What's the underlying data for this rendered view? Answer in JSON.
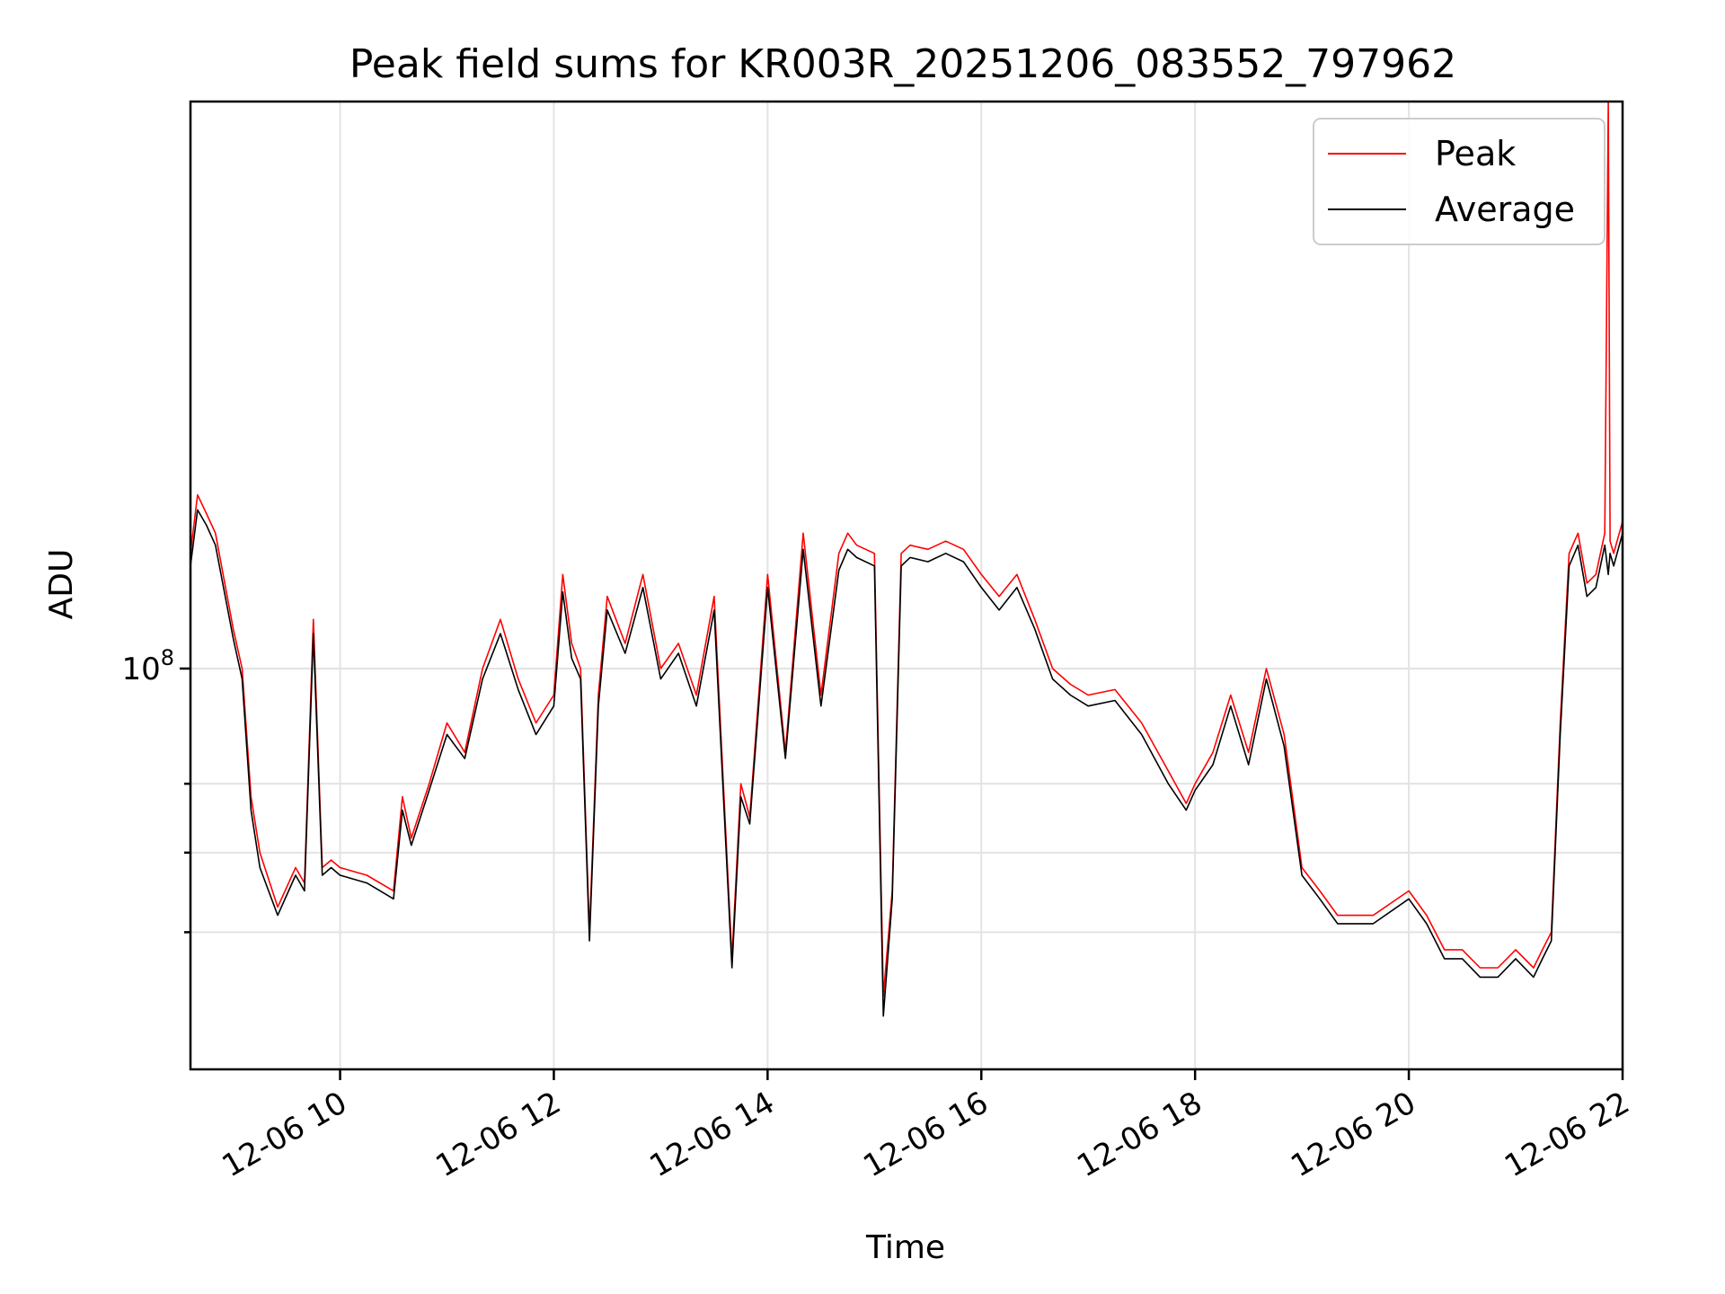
{
  "chart_data": {
    "type": "line",
    "title": "Peak field sums for KR003R_20251206_083552_797962",
    "xlabel": "Time",
    "ylabel": "ADU",
    "y_scale": "log",
    "xlim": [
      "2025-12-06 08:36",
      "2025-12-06 22:00"
    ],
    "ylim": [
      46000000,
      300000000
    ],
    "x_ticks": [
      {
        "value": "2025-12-06 10:00",
        "label": "12-06 10"
      },
      {
        "value": "2025-12-06 12:00",
        "label": "12-06 12"
      },
      {
        "value": "2025-12-06 14:00",
        "label": "12-06 14"
      },
      {
        "value": "2025-12-06 16:00",
        "label": "12-06 16"
      },
      {
        "value": "2025-12-06 18:00",
        "label": "12-06 18"
      },
      {
        "value": "2025-12-06 20:00",
        "label": "12-06 20"
      },
      {
        "value": "2025-12-06 22:00",
        "label": "12-06 22"
      }
    ],
    "y_ticks_major": [
      {
        "value": 100000000,
        "label": "10",
        "exponent": "8"
      }
    ],
    "y_ticks_minor": [
      60000000,
      70000000,
      80000000
    ],
    "grid": true,
    "legend_position": "upper right",
    "x": [
      "2025-12-06 08:36",
      "2025-12-06 08:40",
      "2025-12-06 08:45",
      "2025-12-06 08:50",
      "2025-12-06 09:00",
      "2025-12-06 09:05",
      "2025-12-06 09:10",
      "2025-12-06 09:15",
      "2025-12-06 09:25",
      "2025-12-06 09:35",
      "2025-12-06 09:40",
      "2025-12-06 09:45",
      "2025-12-06 09:50",
      "2025-12-06 09:55",
      "2025-12-06 10:00",
      "2025-12-06 10:15",
      "2025-12-06 10:30",
      "2025-12-06 10:35",
      "2025-12-06 10:40",
      "2025-12-06 10:50",
      "2025-12-06 11:00",
      "2025-12-06 11:10",
      "2025-12-06 11:20",
      "2025-12-06 11:30",
      "2025-12-06 11:40",
      "2025-12-06 11:50",
      "2025-12-06 12:00",
      "2025-12-06 12:05",
      "2025-12-06 12:10",
      "2025-12-06 12:15",
      "2025-12-06 12:20",
      "2025-12-06 12:25",
      "2025-12-06 12:30",
      "2025-12-06 12:40",
      "2025-12-06 12:50",
      "2025-12-06 13:00",
      "2025-12-06 13:10",
      "2025-12-06 13:20",
      "2025-12-06 13:30",
      "2025-12-06 13:40",
      "2025-12-06 13:45",
      "2025-12-06 13:50",
      "2025-12-06 14:00",
      "2025-12-06 14:10",
      "2025-12-06 14:20",
      "2025-12-06 14:30",
      "2025-12-06 14:40",
      "2025-12-06 14:45",
      "2025-12-06 14:50",
      "2025-12-06 15:00",
      "2025-12-06 15:05",
      "2025-12-06 15:10",
      "2025-12-06 15:15",
      "2025-12-06 15:20",
      "2025-12-06 15:30",
      "2025-12-06 15:40",
      "2025-12-06 15:50",
      "2025-12-06 16:00",
      "2025-12-06 16:10",
      "2025-12-06 16:20",
      "2025-12-06 16:30",
      "2025-12-06 16:40",
      "2025-12-06 16:50",
      "2025-12-06 17:00",
      "2025-12-06 17:15",
      "2025-12-06 17:30",
      "2025-12-06 17:45",
      "2025-12-06 17:55",
      "2025-12-06 18:00",
      "2025-12-06 18:10",
      "2025-12-06 18:20",
      "2025-12-06 18:30",
      "2025-12-06 18:40",
      "2025-12-06 18:50",
      "2025-12-06 19:00",
      "2025-12-06 19:10",
      "2025-12-06 19:20",
      "2025-12-06 19:40",
      "2025-12-06 20:00",
      "2025-12-06 20:10",
      "2025-12-06 20:20",
      "2025-12-06 20:30",
      "2025-12-06 20:40",
      "2025-12-06 20:50",
      "2025-12-06 21:00",
      "2025-12-06 21:10",
      "2025-12-06 21:15",
      "2025-12-06 21:20",
      "2025-12-06 21:25",
      "2025-12-06 21:30",
      "2025-12-06 21:35",
      "2025-12-06 21:40",
      "2025-12-06 21:45",
      "2025-12-06 21:50",
      "2025-12-06 21:52",
      "2025-12-06 21:53",
      "2025-12-06 21:55",
      "2025-12-06 22:00"
    ],
    "series": [
      {
        "name": "Peak",
        "color": "#ff0000",
        "values": [
          125000000,
          140000000,
          135000000,
          130000000,
          108000000,
          100000000,
          78000000,
          70000000,
          63000000,
          68000000,
          66000000,
          110000000,
          68000000,
          69000000,
          68000000,
          67000000,
          65000000,
          78000000,
          72000000,
          80000000,
          90000000,
          85000000,
          100000000,
          110000000,
          98000000,
          90000000,
          95000000,
          120000000,
          105000000,
          100000000,
          60000000,
          95000000,
          115000000,
          105000000,
          120000000,
          100000000,
          105000000,
          95000000,
          115000000,
          57000000,
          80000000,
          75000000,
          120000000,
          85000000,
          130000000,
          95000000,
          125000000,
          130000000,
          127000000,
          125000000,
          53000000,
          65000000,
          125000000,
          127000000,
          126000000,
          128000000,
          126000000,
          120000000,
          115000000,
          120000000,
          110000000,
          100000000,
          97000000,
          95000000,
          96000000,
          90000000,
          82000000,
          77000000,
          80000000,
          85000000,
          95000000,
          85000000,
          100000000,
          88000000,
          68000000,
          65000000,
          62000000,
          62000000,
          65000000,
          62000000,
          58000000,
          58000000,
          56000000,
          56000000,
          58000000,
          56000000,
          58000000,
          60000000,
          90000000,
          125000000,
          130000000,
          118000000,
          120000000,
          130000000,
          300000000,
          128000000,
          125000000,
          133000000
        ]
      },
      {
        "name": "Average",
        "color": "#000000",
        "values": [
          122000000,
          136000000,
          132000000,
          127000000,
          106000000,
          98000000,
          76000000,
          68000000,
          62000000,
          67000000,
          65000000,
          107000000,
          67000000,
          68000000,
          67000000,
          66000000,
          64000000,
          76000000,
          71000000,
          79000000,
          88000000,
          84000000,
          98000000,
          107000000,
          96000000,
          88000000,
          93000000,
          116000000,
          102000000,
          98000000,
          59000000,
          93000000,
          112000000,
          103000000,
          117000000,
          98000000,
          103000000,
          93000000,
          112000000,
          56000000,
          78000000,
          74000000,
          117000000,
          84000000,
          126000000,
          93000000,
          121000000,
          126000000,
          124000000,
          122000000,
          51000000,
          64000000,
          122000000,
          124000000,
          123000000,
          125000000,
          123000000,
          117000000,
          112000000,
          117000000,
          108000000,
          98000000,
          95000000,
          93000000,
          94000000,
          88000000,
          80000000,
          76000000,
          79000000,
          83000000,
          93000000,
          83000000,
          98000000,
          86000000,
          67000000,
          64000000,
          61000000,
          61000000,
          64000000,
          61000000,
          57000000,
          57000000,
          55000000,
          55000000,
          57000000,
          55000000,
          57000000,
          59000000,
          88000000,
          122000000,
          127000000,
          115000000,
          117000000,
          127000000,
          120000000,
          125000000,
          122000000,
          130000000
        ]
      }
    ]
  }
}
